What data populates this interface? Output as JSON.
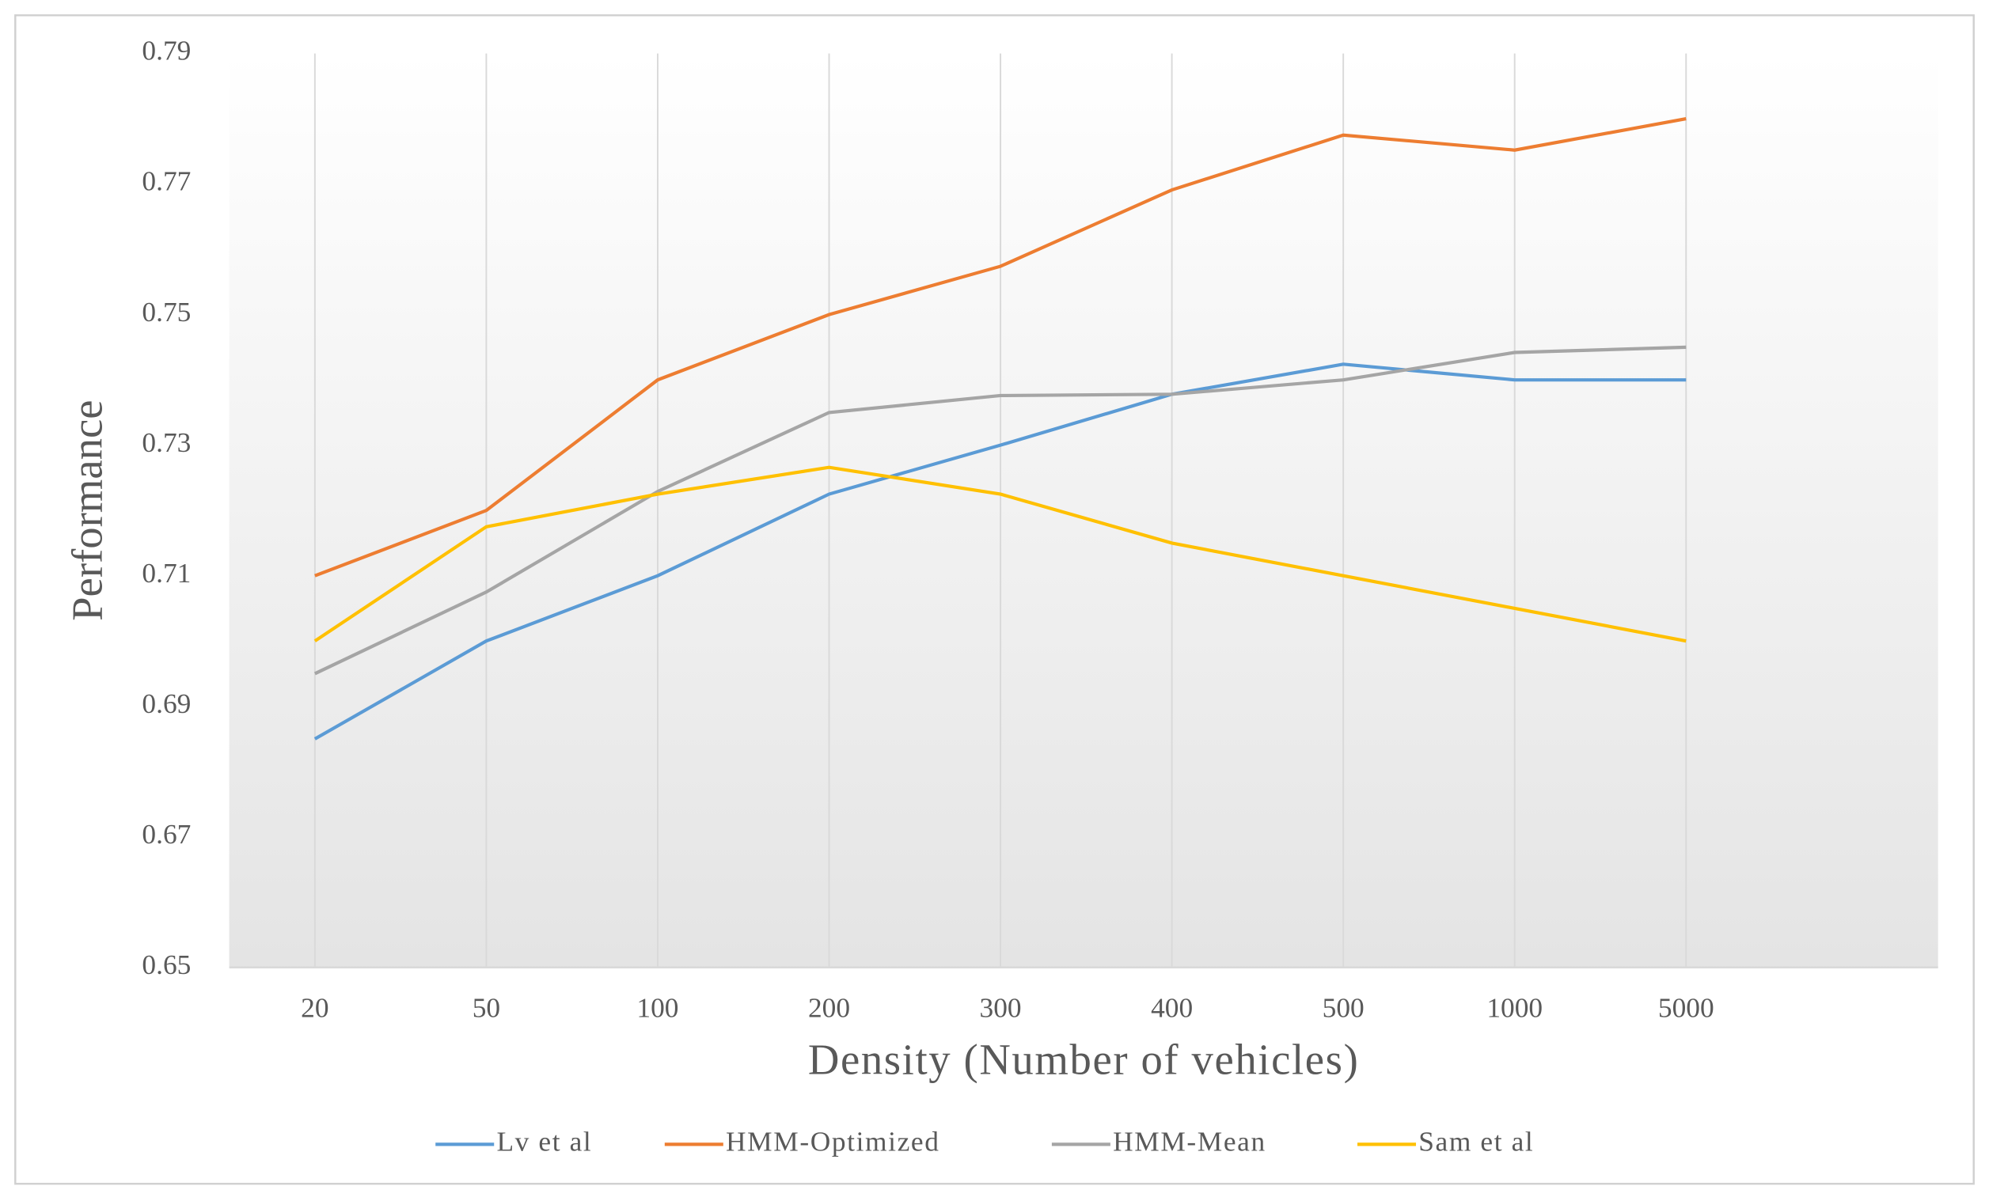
{
  "chart_data": {
    "type": "line",
    "x_label": "Density (Number of vehicles)",
    "y_label": "Performance",
    "categories": [
      "20",
      "50",
      "100",
      "200",
      "300",
      "400",
      "500",
      "1000",
      "5000"
    ],
    "series": [
      {
        "name": "Lv et al",
        "color": "#5b9bd5",
        "values": [
          0.685,
          0.7,
          0.71,
          0.7225,
          0.73,
          0.7378,
          0.7424,
          0.74,
          0.74
        ]
      },
      {
        "name": "HMM-Optimized",
        "color": "#ed7d31",
        "values": [
          0.71,
          0.72,
          0.74,
          0.75,
          0.7574,
          0.7691,
          0.7775,
          0.7752,
          0.78
        ]
      },
      {
        "name": "HMM-Mean",
        "color": "#a5a5a5",
        "values": [
          0.695,
          0.7075,
          0.7229,
          0.735,
          0.7376,
          0.7378,
          0.74,
          0.7442,
          0.745
        ]
      },
      {
        "name": "Sam et al",
        "color": "#ffc000",
        "values": [
          0.7,
          0.7175,
          0.7225,
          0.7266,
          0.7225,
          0.715,
          0.71,
          0.705,
          0.7
        ]
      }
    ],
    "ylim": [
      0.65,
      0.79
    ],
    "yticks": [
      0.65,
      0.67,
      0.69,
      0.71,
      0.73,
      0.75,
      0.77,
      0.79
    ],
    "grid": true,
    "legend": "bottom"
  }
}
